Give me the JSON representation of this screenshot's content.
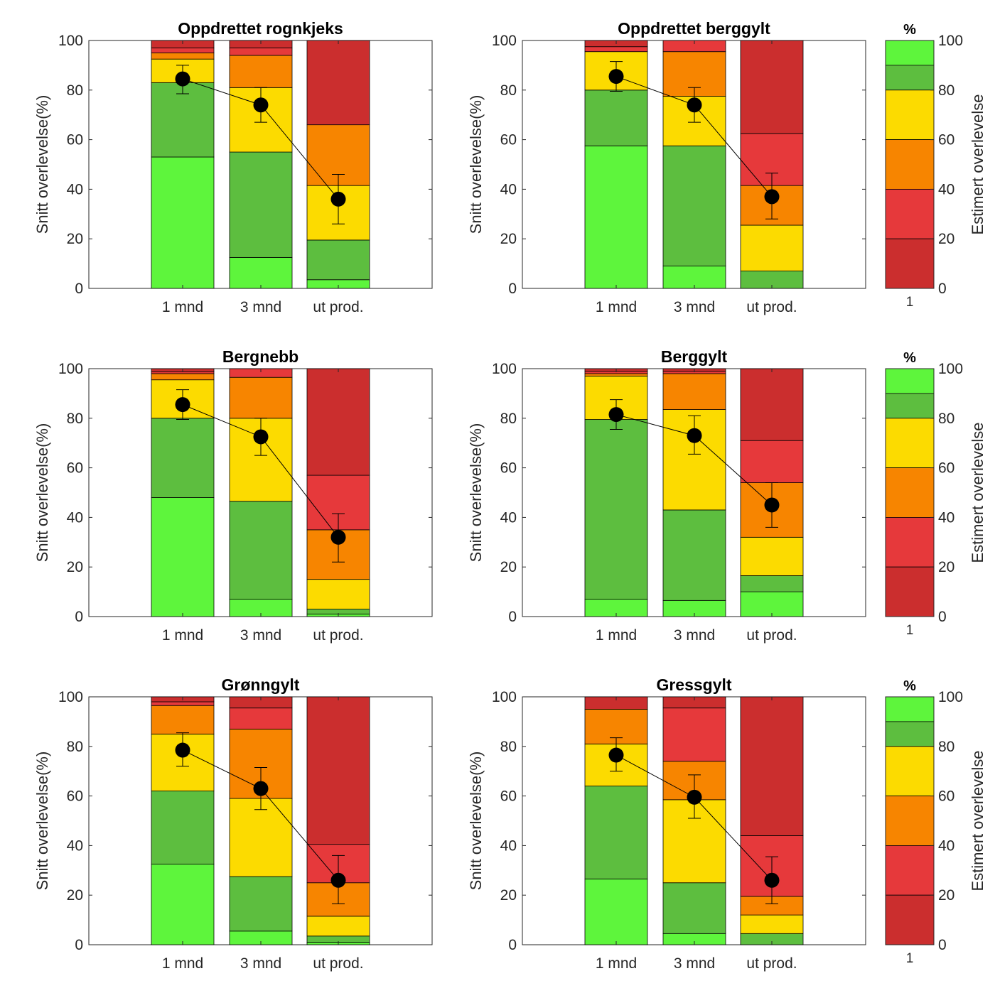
{
  "colors": {
    "band_80_90": "#5dbe3f",
    "band_90_100": "#5ef53c",
    "band_60_80": "#fcdb00",
    "band_40_60": "#f78500",
    "band_20_40": "#e6393b",
    "band_0_20": "#cb2e2e",
    "marker": "#000000"
  },
  "colorbar": {
    "title": "%",
    "label": "Estimert overlevelse",
    "x_tick": "1",
    "ticks": [
      "100",
      "80",
      "60",
      "40",
      "20",
      "0"
    ],
    "bands": [
      {
        "from": 90,
        "to": 100,
        "color": "#5ef53c"
      },
      {
        "from": 80,
        "to": 90,
        "color": "#5dbe3f"
      },
      {
        "from": 60,
        "to": 80,
        "color": "#fcdb00"
      },
      {
        "from": 40,
        "to": 60,
        "color": "#f78500"
      },
      {
        "from": 20,
        "to": 40,
        "color": "#e6393b"
      },
      {
        "from": 0,
        "to": 20,
        "color": "#cb2e2e"
      }
    ]
  },
  "chart_data": [
    {
      "type": "bar",
      "title": "Oppdrettet rognkjeks",
      "ylabel": "Snitt overlevelse(%)",
      "ylim": [
        0,
        100
      ],
      "yticks": [
        "0",
        "20",
        "40",
        "60",
        "80",
        "100"
      ],
      "categories": [
        "1 mnd",
        "3 mnd",
        "ut prod."
      ],
      "stacked_segments_bottom_to_top": [
        [
          53,
          30,
          9.5,
          2.5,
          2,
          3
        ],
        [
          12.5,
          42.5,
          26,
          13,
          3,
          3
        ],
        [
          3.5,
          16,
          22,
          24.5,
          0,
          34
        ]
      ],
      "mean": [
        84.5,
        74,
        36
      ],
      "error": [
        [
          78.5,
          90
        ],
        [
          67,
          81
        ],
        [
          26,
          46
        ]
      ]
    },
    {
      "type": "bar",
      "title": "Oppdrettet berggylt",
      "ylabel": "Snitt overlevelse(%)",
      "ylim": [
        0,
        100
      ],
      "yticks": [
        "0",
        "20",
        "40",
        "60",
        "80",
        "100"
      ],
      "categories": [
        "1 mnd",
        "3 mnd",
        "ut prod."
      ],
      "stacked_segments_bottom_to_top": [
        [
          57.5,
          22.5,
          15.5,
          0,
          2,
          2.5
        ],
        [
          9,
          48.5,
          20,
          18,
          4.5,
          0
        ],
        [
          0,
          7,
          18.5,
          16,
          21,
          37.5
        ]
      ],
      "mean": [
        85.5,
        74,
        37
      ],
      "error": [
        [
          79.5,
          91.5
        ],
        [
          67,
          81
        ],
        [
          28,
          46.5
        ]
      ]
    },
    {
      "type": "bar",
      "title": "Bergnebb",
      "ylabel": "Snitt overlevelse(%)",
      "ylim": [
        0,
        100
      ],
      "yticks": [
        "0",
        "20",
        "40",
        "60",
        "80",
        "100"
      ],
      "categories": [
        "1 mnd",
        "3 mnd",
        "ut prod."
      ],
      "stacked_segments_bottom_to_top": [
        [
          48,
          32,
          15.5,
          2.5,
          0.8,
          1.2
        ],
        [
          7,
          39.5,
          33.5,
          16.5,
          3.5,
          0
        ],
        [
          1,
          2,
          12,
          20,
          22,
          43
        ]
      ],
      "mean": [
        85.5,
        72.5,
        32
      ],
      "error": [
        [
          79.5,
          91.5
        ],
        [
          65,
          80
        ],
        [
          22,
          41.5
        ]
      ]
    },
    {
      "type": "bar",
      "title": "Berggylt",
      "ylabel": "Snitt overlevelse(%)",
      "ylim": [
        0,
        100
      ],
      "yticks": [
        "0",
        "20",
        "40",
        "60",
        "80",
        "100"
      ],
      "categories": [
        "1 mnd",
        "3 mnd",
        "ut prod."
      ],
      "stacked_segments_bottom_to_top": [
        [
          7,
          72.5,
          17.5,
          1,
          1,
          1
        ],
        [
          6.5,
          36.5,
          40.5,
          14.5,
          1,
          1
        ],
        [
          10,
          6.5,
          15.5,
          22,
          17,
          29
        ]
      ],
      "mean": [
        81.5,
        73,
        45
      ],
      "error": [
        [
          75.5,
          87.5
        ],
        [
          65.5,
          81
        ],
        [
          36,
          54
        ]
      ]
    },
    {
      "type": "bar",
      "title": "Grønngylt",
      "ylabel": "Snitt overlevelse(%)",
      "ylim": [
        0,
        100
      ],
      "yticks": [
        "0",
        "20",
        "40",
        "60",
        "80",
        "100"
      ],
      "categories": [
        "1 mnd",
        "3 mnd",
        "ut prod."
      ],
      "stacked_segments_bottom_to_top": [
        [
          32.5,
          29.5,
          23,
          11.5,
          1.5,
          2
        ],
        [
          5.5,
          22,
          31.5,
          28,
          8.5,
          4.5
        ],
        [
          1,
          2.5,
          8,
          13.5,
          15.5,
          59.5
        ]
      ],
      "mean": [
        78.5,
        63,
        26
      ],
      "error": [
        [
          72,
          85.5
        ],
        [
          54.5,
          71.5
        ],
        [
          16.5,
          36
        ]
      ]
    },
    {
      "type": "bar",
      "title": "Gressgylt",
      "ylabel": "Snitt overlevelse(%)",
      "ylim": [
        0,
        100
      ],
      "yticks": [
        "0",
        "20",
        "40",
        "60",
        "80",
        "100"
      ],
      "categories": [
        "1 mnd",
        "3 mnd",
        "ut prod."
      ],
      "stacked_segments_bottom_to_top": [
        [
          26.5,
          37.5,
          17,
          14,
          0,
          5
        ],
        [
          4.5,
          20.5,
          33.5,
          15.5,
          21.5,
          4.5
        ],
        [
          0,
          4.5,
          7.5,
          7.5,
          24.5,
          56
        ]
      ],
      "mean": [
        76.5,
        59.5,
        26
      ],
      "error": [
        [
          70,
          83.5
        ],
        [
          51,
          68.5
        ],
        [
          16.5,
          35.5
        ]
      ]
    }
  ]
}
